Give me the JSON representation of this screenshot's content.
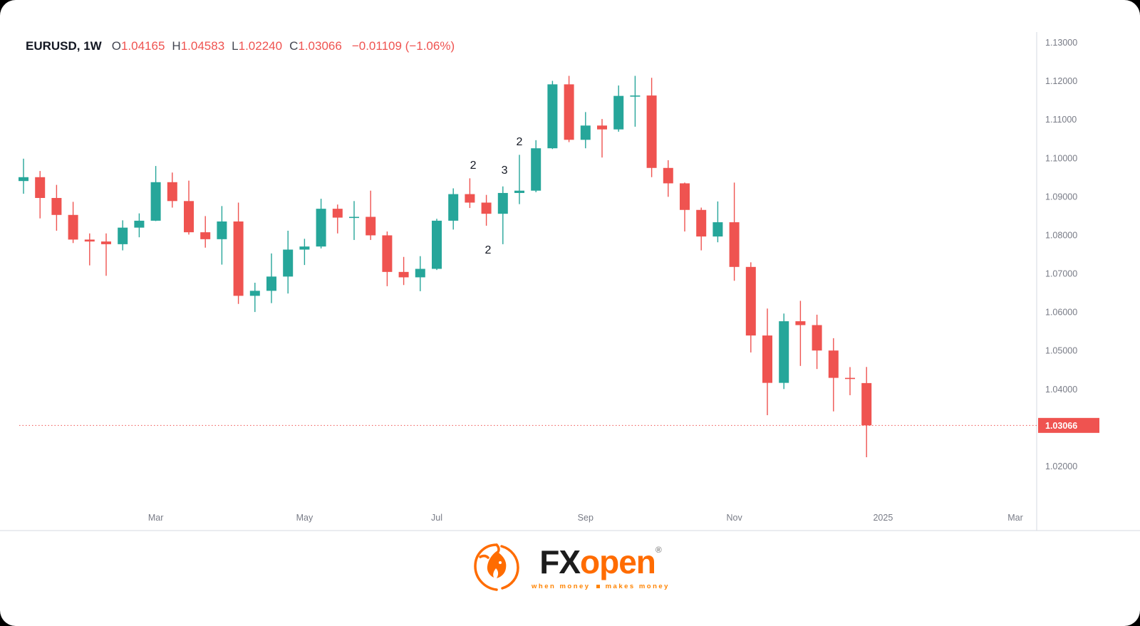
{
  "legend": {
    "symbol": "EURUSD, 1W",
    "ohlc": [
      {
        "label": "O",
        "value": "1.04165"
      },
      {
        "label": "H",
        "value": "1.04583"
      },
      {
        "label": "L",
        "value": "1.02240"
      },
      {
        "label": "C",
        "value": "1.03066"
      }
    ],
    "change": "−0.01109 (−1.06%)"
  },
  "colors": {
    "up": "#26a69a",
    "down": "#ef5350",
    "axis_text": "#787b86",
    "axis_line": "#d6d9e0",
    "text_dark": "#131722",
    "price_label_bg": "#ef5350",
    "price_label_text": "#ffffff",
    "brand_orange": "#ff6c00"
  },
  "price_axis": {
    "labels": [
      "1.13000",
      "1.12000",
      "1.11000",
      "1.10000",
      "1.09000",
      "1.08000",
      "1.07000",
      "1.06000",
      "1.05000",
      "1.04000",
      "1.03000",
      "1.02000"
    ],
    "current_label": "1.03066",
    "current_value": 1.03066
  },
  "time_axis": {
    "labels": [
      {
        "text": "Mar",
        "index": 8
      },
      {
        "text": "May",
        "index": 17
      },
      {
        "text": "Jul",
        "index": 25
      },
      {
        "text": "Sep",
        "index": 34
      },
      {
        "text": "Nov",
        "index": 43
      },
      {
        "text": "2025",
        "index": 52
      },
      {
        "text": "Mar",
        "index": 60
      }
    ]
  },
  "chart_data": {
    "type": "candlestick",
    "symbol": "EURUSD",
    "timeframe": "1W",
    "price_range": [
      1.02,
      1.13
    ],
    "grid": false,
    "candles": [
      [
        1.0941,
        1.0999,
        1.0908,
        1.0951
      ],
      [
        1.0951,
        1.0967,
        1.0844,
        1.0897
      ],
      [
        1.0897,
        1.0931,
        1.0812,
        1.0853
      ],
      [
        1.0853,
        1.0887,
        1.078,
        1.0789
      ],
      [
        1.0789,
        1.0805,
        1.0722,
        1.0784
      ],
      [
        1.0784,
        1.0805,
        1.0695,
        1.0777
      ],
      [
        1.0777,
        1.0839,
        1.0761,
        1.082
      ],
      [
        1.082,
        1.0857,
        1.0795,
        1.0838
      ],
      [
        1.0838,
        1.098,
        1.0837,
        1.0938
      ],
      [
        1.0938,
        1.0963,
        1.0872,
        1.0889
      ],
      [
        1.0889,
        1.0942,
        1.0802,
        1.0808
      ],
      [
        1.0808,
        1.085,
        1.0768,
        1.079
      ],
      [
        1.079,
        1.0876,
        1.0724,
        1.0836
      ],
      [
        1.0836,
        1.0885,
        1.0622,
        1.0643
      ],
      [
        1.0643,
        1.0677,
        1.0601,
        1.0656
      ],
      [
        1.0656,
        1.0753,
        1.0624,
        1.0693
      ],
      [
        1.0693,
        1.0812,
        1.0649,
        1.0763
      ],
      [
        1.0763,
        1.0791,
        1.0723,
        1.0771
      ],
      [
        1.0771,
        1.0895,
        1.0766,
        1.0869
      ],
      [
        1.0869,
        1.088,
        1.0805,
        1.0846
      ],
      [
        1.0846,
        1.0889,
        1.0788,
        1.0848
      ],
      [
        1.0848,
        1.0916,
        1.0788,
        1.08
      ],
      [
        1.08,
        1.081,
        1.0668,
        1.0705
      ],
      [
        1.0705,
        1.0744,
        1.0671,
        1.0691
      ],
      [
        1.0691,
        1.0746,
        1.0655,
        1.0713
      ],
      [
        1.0713,
        1.0843,
        1.071,
        1.0838
      ],
      [
        1.0838,
        1.0922,
        1.0815,
        1.0907
      ],
      [
        1.0907,
        1.0948,
        1.0871,
        1.0885
      ],
      [
        1.0885,
        1.0905,
        1.0825,
        1.0856
      ],
      [
        1.0856,
        1.0927,
        1.0777,
        1.091
      ],
      [
        1.091,
        1.1009,
        1.0881,
        1.0916
      ],
      [
        1.0916,
        1.1047,
        1.0912,
        1.1026
      ],
      [
        1.1026,
        1.1201,
        1.1024,
        1.1192
      ],
      [
        1.1192,
        1.1214,
        1.1042,
        1.1048
      ],
      [
        1.1048,
        1.112,
        1.1026,
        1.1085
      ],
      [
        1.1085,
        1.1102,
        1.1002,
        1.1075
      ],
      [
        1.1075,
        1.1189,
        1.1069,
        1.1162
      ],
      [
        1.1162,
        1.1214,
        1.1082,
        1.1163
      ],
      [
        1.1163,
        1.1209,
        1.0951,
        1.0975
      ],
      [
        1.0975,
        1.0995,
        1.09,
        1.0935
      ],
      [
        1.0935,
        1.0937,
        1.081,
        1.0866
      ],
      [
        1.0866,
        1.0872,
        1.0761,
        1.0797
      ],
      [
        1.0797,
        1.0888,
        1.0782,
        1.0834
      ],
      [
        1.0834,
        1.0937,
        1.0682,
        1.0718
      ],
      [
        1.0718,
        1.073,
        1.0496,
        1.054
      ],
      [
        1.054,
        1.061,
        1.0333,
        1.0417
      ],
      [
        1.0417,
        1.0597,
        1.0401,
        1.0577
      ],
      [
        1.0577,
        1.063,
        1.0461,
        1.0567
      ],
      [
        1.0567,
        1.0594,
        1.0453,
        1.0501
      ],
      [
        1.0501,
        1.0533,
        1.0343,
        1.043
      ],
      [
        1.043,
        1.0458,
        1.0385,
        1.0427
      ],
      [
        1.04165,
        1.04583,
        1.0224,
        1.03066
      ]
    ],
    "annotations": [
      {
        "text": "2",
        "candle": 27.2,
        "price": 1.0982
      },
      {
        "text": "2",
        "candle": 28.1,
        "price": 1.0762
      },
      {
        "text": "3",
        "candle": 29.1,
        "price": 1.0969
      },
      {
        "text": "2",
        "candle": 30.0,
        "price": 1.1043
      }
    ]
  },
  "footer": {
    "brand_primary": "FX",
    "brand_secondary": "open",
    "registered": "®",
    "tagline_left": "when money",
    "tagline_right": "makes money"
  }
}
